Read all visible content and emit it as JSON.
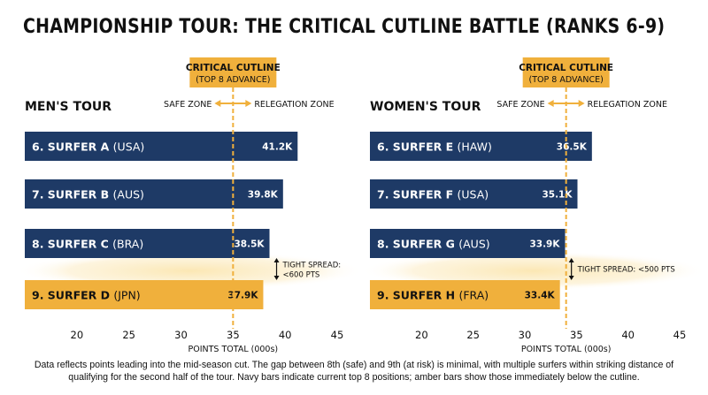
{
  "title": "CHAMPIONSHIP TOUR: THE CRITICAL CUTLINE BATTLE (RANKS 6-9)",
  "footnote": "Data reflects points leading into the mid-season cut. The gap between 8th (safe) and 9th (at risk) is minimal, with multiple surfers within striking distance of qualifying for the second half of the tour. Navy bars indicate current top 8 positions; amber bars show those immediately below the cutline.",
  "colors": {
    "safe_bar": "#1e3a66",
    "risk_bar": "#f0b03c",
    "cutline": "#f0b03c",
    "highlight_glow": "#fbe6b0",
    "text_dark": "#111111",
    "grid": "#cccccc",
    "background": "#ffffff"
  },
  "chart_data": [
    {
      "type": "bar",
      "orientation": "horizontal",
      "panel_title": "MEN'S TOUR",
      "categories": [
        "6. SURFER A (USA)",
        "7. SURFER B (AUS)",
        "8. SURFER C (BRA)",
        "9. SURFER D (JPN)"
      ],
      "values": [
        41.2,
        39.8,
        38.5,
        37.9
      ],
      "value_labels": [
        "41.2K",
        "39.8K",
        "38.5K",
        "37.9K"
      ],
      "status": [
        "safe",
        "safe",
        "safe",
        "risk"
      ],
      "xlabel": "POINTS TOTAL (000s)",
      "xlim": [
        15,
        45
      ],
      "xticks": [
        20,
        25,
        30,
        35,
        40,
        45
      ],
      "cutline": {
        "value": 35,
        "label": "CRITICAL CUTLINE",
        "sublabel": "(TOP 8 ADVANCE)",
        "left_label": "SAFE ZONE",
        "right_label": "RELEGATION ZONE"
      },
      "annotation": {
        "text_line1": "TIGHT SPREAD:",
        "text_line2": "<600 PTS"
      }
    },
    {
      "type": "bar",
      "orientation": "horizontal",
      "panel_title": "WOMEN'S TOUR",
      "categories": [
        "6. SURFER E (HAW)",
        "7. SURFER F (USA)",
        "8. SURFER G (AUS)",
        "9. SURFER H (FRA)"
      ],
      "values": [
        36.5,
        35.1,
        33.9,
        33.4
      ],
      "value_labels": [
        "36.5K",
        "35.1K",
        "33.9K",
        "33.4K"
      ],
      "status": [
        "safe",
        "safe",
        "safe",
        "risk"
      ],
      "xlabel": "POINTS TOTAL (000s)",
      "xlim": [
        15,
        45
      ],
      "xticks": [
        20,
        25,
        30,
        35,
        40,
        45
      ],
      "cutline": {
        "value": 34,
        "label": "CRITICAL CUTLINE",
        "sublabel": "(TOP 8 ADVANCE)",
        "left_label": "SAFE ZONE",
        "right_label": "RELEGATION ZONE"
      },
      "annotation": {
        "text_line1": "TIGHT SPREAD: <500 PTS",
        "text_line2": ""
      }
    }
  ]
}
